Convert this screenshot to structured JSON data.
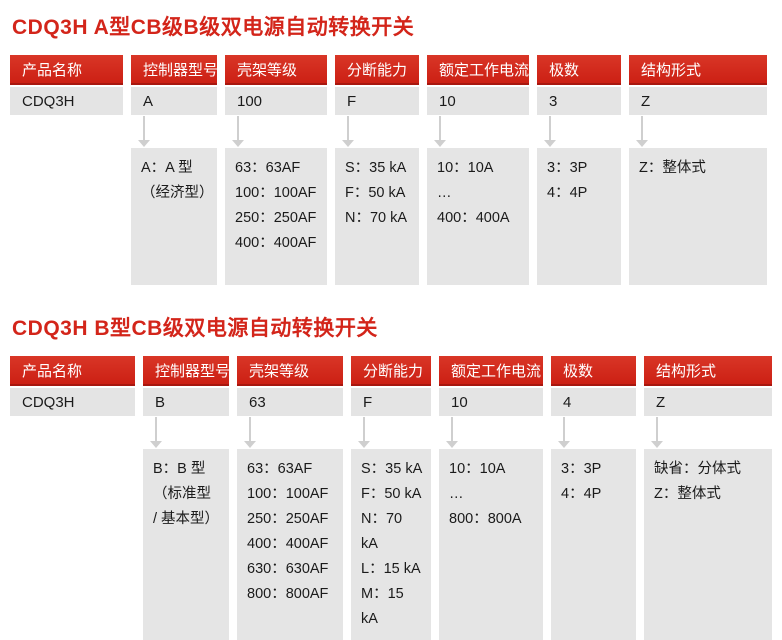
{
  "colors": {
    "accent_red": "#cf2318",
    "accent_red_dark": "#a8170f",
    "cell_gray": "#e4e4e4",
    "box_gray": "#e5e5e5",
    "arrow_gray": "#cfcfcf",
    "text_dark": "#1b1b1b",
    "header_text": "#ffffff"
  },
  "sections": [
    {
      "title": "CDQ3H A型CB级B级双电源自动转换开关",
      "headers": [
        "产品名称",
        "控制器型号",
        "壳架等级",
        "分断能力",
        "额定工作电流",
        "极数",
        "结构形式"
      ],
      "values": [
        "CDQ3H",
        "A",
        "100",
        "F",
        "10",
        "3",
        "Z"
      ],
      "details": [
        {
          "lines": [
            "A：A 型",
            "（经济型）"
          ]
        },
        {
          "lines": [
            "63：63AF",
            "100：100AF",
            "250：250AF",
            "400：400AF"
          ]
        },
        {
          "lines": [
            "S：35 kA",
            "F：50 kA",
            "N：70 kA"
          ]
        },
        {
          "lines": [
            "10：10A",
            "…",
            "400：400A"
          ]
        },
        {
          "lines": [
            "3：3P",
            "4：4P"
          ]
        },
        {
          "lines": [
            "Z：整体式"
          ]
        }
      ]
    },
    {
      "title": "CDQ3H B型CB级双电源自动转换开关",
      "headers": [
        "产品名称",
        "控制器型号",
        "壳架等级",
        "分断能力",
        "额定工作电流",
        "极数",
        "结构形式"
      ],
      "values": [
        "CDQ3H",
        "B",
        "63",
        "F",
        "10",
        "4",
        "Z"
      ],
      "details": [
        {
          "lines": [
            "B：B 型",
            "（标准型",
            "/ 基本型）"
          ]
        },
        {
          "lines": [
            "63：63AF",
            "100：100AF",
            "250：250AF",
            "400：400AF",
            "630：630AF",
            "800：800AF"
          ]
        },
        {
          "lines": [
            "S：35 kA",
            "F：50 kA",
            "N：70 kA",
            "L：15 kA",
            "M：15 kA"
          ]
        },
        {
          "lines": [
            "10：10A",
            "…",
            "800：800A"
          ]
        },
        {
          "lines": [
            "3：3P",
            "4：4P"
          ]
        },
        {
          "lines": [
            "缺省：分体式",
            "Z：整体式"
          ]
        }
      ]
    }
  ]
}
